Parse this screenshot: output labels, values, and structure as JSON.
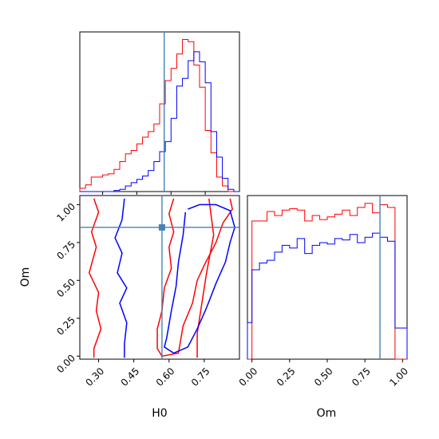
{
  "chart_data": {
    "type": "corner",
    "parameters": [
      "H0",
      "Om"
    ],
    "truth": {
      "H0": 0.57,
      "Om": 0.85
    },
    "colors": {
      "series1": "#ff0000",
      "series2": "#0000ff",
      "truth": "#4682b4"
    },
    "panels": [
      {
        "id": "hist-H0",
        "type": "step-histogram",
        "xlim": [
          0.2,
          0.9
        ],
        "bin_edges": [
          0.2,
          0.225,
          0.25,
          0.275,
          0.3,
          0.325,
          0.35,
          0.375,
          0.4,
          0.425,
          0.45,
          0.475,
          0.5,
          0.525,
          0.55,
          0.575,
          0.6,
          0.625,
          0.65,
          0.675,
          0.7,
          0.725,
          0.75,
          0.775,
          0.8,
          0.825,
          0.85,
          0.875,
          0.9
        ],
        "series": [
          {
            "name": "red",
            "counts": [
              3,
              6,
              13,
              13,
              15,
              16,
              20,
              27,
              34,
              37,
              43,
              49,
              54,
              61,
              79,
              100,
              111,
              124,
              137,
              135,
              114,
              94,
              55,
              35,
              13,
              5,
              0,
              0
            ]
          },
          {
            "name": "blue",
            "counts": [
              0,
              0,
              0,
              0,
              0,
              0,
              1,
              2,
              5,
              8,
              11,
              14,
              19,
              27,
              36,
              45,
              66,
              95,
              102,
              118,
              126,
              117,
              98,
              54,
              31,
              12,
              2,
              0
            ]
          }
        ],
        "truth_x": 0.57,
        "xticks": [
          0.3,
          0.45,
          0.6,
          0.75
        ]
      },
      {
        "id": "hist-Om",
        "type": "step-histogram",
        "xlim": [
          -0.03,
          1.03
        ],
        "bin_edges": [
          -0.03,
          0.0,
          0.05,
          0.1,
          0.15,
          0.2,
          0.25,
          0.3,
          0.35,
          0.4,
          0.45,
          0.5,
          0.55,
          0.6,
          0.65,
          0.7,
          0.75,
          0.8,
          0.85,
          0.9,
          0.95,
          1.0,
          1.03
        ],
        "series": [
          {
            "name": "red",
            "counts": [
              0,
              1.02,
              1.02,
              1.09,
              1.06,
              1.1,
              1.11,
              1.1,
              1.02,
              1.06,
              1.03,
              1.05,
              1.07,
              1.1,
              1.06,
              1.12,
              1.15,
              1.08,
              1.14,
              1.12,
              0.0,
              0.0
            ]
          },
          {
            "name": "blue",
            "counts": [
              0.27,
              0.66,
              0.71,
              0.73,
              0.79,
              0.84,
              0.82,
              0.89,
              0.78,
              0.84,
              0.86,
              0.85,
              0.89,
              0.88,
              0.92,
              0.86,
              0.9,
              0.93,
              0.9,
              0.87,
              0.23,
              0.23
            ]
          }
        ],
        "truth_x": 0.85,
        "xlabel": "Om",
        "xticks": [
          "0.00",
          "0.25",
          "0.50",
          "0.75",
          "1.00"
        ]
      },
      {
        "id": "contour-H0-Om",
        "type": "contour",
        "xlim": [
          0.22,
          0.9
        ],
        "ylim": [
          -0.02,
          1.06
        ],
        "xlabel": "H0",
        "ylabel": "Om",
        "xticks": [
          "0.30",
          "0.45",
          "0.60",
          "0.75"
        ],
        "yticks": [
          "0.00",
          "0.25",
          "0.50",
          "0.75",
          "1.00"
        ],
        "truth": [
          0.57,
          0.85
        ],
        "series": [
          {
            "name": "red",
            "contours": [
              [
                [
                  0.28,
                  1.04
                ],
                [
                  0.3,
                  0.95
                ],
                [
                  0.27,
                  0.82
                ],
                [
                  0.29,
                  0.72
                ],
                [
                  0.26,
                  0.55
                ],
                [
                  0.3,
                  0.42
                ],
                [
                  0.29,
                  0.3
                ],
                [
                  0.31,
                  0.18
                ],
                [
                  0.28,
                  0.05
                ],
                [
                  0.28,
                  -0.01
                ]
              ],
              [
                [
                  0.62,
                  1.04
                ],
                [
                  0.6,
                  0.94
                ],
                [
                  0.62,
                  0.82
                ],
                [
                  0.6,
                  0.72
                ],
                [
                  0.61,
                  0.58
                ],
                [
                  0.58,
                  0.45
                ],
                [
                  0.57,
                  0.3
                ],
                [
                  0.55,
                  0.18
                ],
                [
                  0.55,
                  0.05
                ],
                [
                  0.57,
                  0.0
                ],
                [
                  0.64,
                  0.02
                ],
                [
                  0.66,
                  0.2
                ],
                [
                  0.7,
                  0.35
                ],
                [
                  0.72,
                  0.5
                ],
                [
                  0.75,
                  0.6
                ],
                [
                  0.8,
                  0.75
                ],
                [
                  0.83,
                  0.88
                ],
                [
                  0.87,
                  0.97
                ],
                [
                  0.86,
                  1.04
                ]
              ],
              [
                [
                  0.77,
                  1.04
                ],
                [
                  0.79,
                  0.8
                ],
                [
                  0.76,
                  0.55
                ],
                [
                  0.74,
                  0.35
                ],
                [
                  0.72,
                  0.15
                ],
                [
                  0.72,
                  -0.01
                ]
              ]
            ]
          },
          {
            "name": "blue",
            "contours": [
              [
                [
                  0.41,
                  1.04
                ],
                [
                  0.4,
                  0.9
                ],
                [
                  0.37,
                  0.78
                ],
                [
                  0.4,
                  0.68
                ],
                [
                  0.38,
                  0.55
                ],
                [
                  0.42,
                  0.45
                ],
                [
                  0.39,
                  0.35
                ],
                [
                  0.42,
                  0.22
                ],
                [
                  0.41,
                  0.08
                ],
                [
                  0.41,
                  -0.01
                ]
              ],
              [
                [
                  0.67,
                  0.95
                ],
                [
                  0.66,
                  0.8
                ],
                [
                  0.64,
                  0.62
                ],
                [
                  0.63,
                  0.46
                ],
                [
                  0.61,
                  0.3
                ],
                [
                  0.59,
                  0.12
                ],
                [
                  0.58,
                  0.06
                ],
                [
                  0.62,
                  0.02
                ],
                [
                  0.68,
                  0.06
                ],
                [
                  0.72,
                  0.18
                ],
                [
                  0.76,
                  0.32
                ],
                [
                  0.8,
                  0.48
                ],
                [
                  0.84,
                  0.62
                ],
                [
                  0.86,
                  0.75
                ],
                [
                  0.88,
                  0.85
                ],
                [
                  0.86,
                  0.96
                ],
                [
                  0.8,
                  1.0
                ],
                [
                  0.73,
                  1.0
                ],
                [
                  0.68,
                  0.97
                ]
              ]
            ]
          }
        ]
      }
    ]
  }
}
